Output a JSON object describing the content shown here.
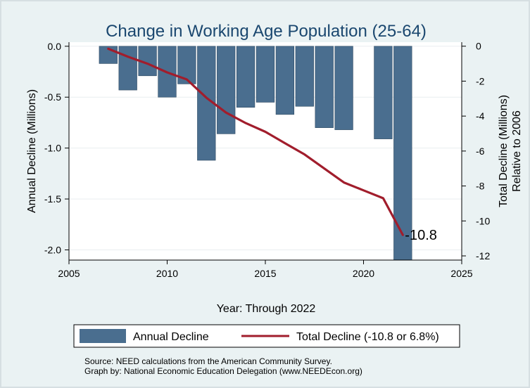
{
  "chart_data": {
    "type": "bar+line",
    "title": "Change in Working Age Population (25-64)",
    "xlabel": "Year: Through 2022",
    "ylabel_left": "Annual Decline (Millions)",
    "ylabel_right": [
      "Total Decline (Millions)",
      "Relative to 2006"
    ],
    "xlim": [
      2005,
      2025
    ],
    "ylim_left": [
      -2.1,
      0.04
    ],
    "ylim_right": [
      -12.24,
      0.23
    ],
    "x_ticks": [
      "2005",
      "2010",
      "2015",
      "2020",
      "2025"
    ],
    "y_left_ticks": [
      "0.0",
      "-0.5",
      "-1.0",
      "-1.5",
      "-2.0"
    ],
    "y_right_ticks": [
      "0",
      "-2",
      "-4",
      "-6",
      "-8",
      "-10",
      "-12"
    ],
    "grid": "horizontal",
    "legend_position": "bottom",
    "series": [
      {
        "name": "Annual Decline",
        "type": "bar",
        "color": "#4a6e8f",
        "x": [
          2007,
          2008,
          2009,
          2010,
          2011,
          2012,
          2013,
          2014,
          2015,
          2016,
          2017,
          2018,
          2019,
          2021,
          2022
        ],
        "values": [
          -0.17,
          -0.43,
          -0.29,
          -0.5,
          -0.37,
          -1.12,
          -0.86,
          -0.6,
          -0.55,
          -0.67,
          -0.59,
          -0.8,
          -0.82,
          -0.91,
          -2.1
        ]
      },
      {
        "name": "Total Decline (-10.8 or 6.8%)",
        "type": "line",
        "color": "#a11d2c",
        "x": [
          2007,
          2008,
          2009,
          2010,
          2011,
          2012,
          2013,
          2014,
          2015,
          2016,
          2017,
          2018,
          2019,
          2020,
          2021,
          2022
        ],
        "values": [
          -0.15,
          -0.6,
          -1.0,
          -1.5,
          -1.9,
          -2.95,
          -3.8,
          -4.4,
          -4.9,
          -5.55,
          -6.2,
          -7.0,
          -7.8,
          -8.25,
          -8.7,
          -10.8
        ]
      }
    ],
    "end_label": "-10.8",
    "legend": [
      {
        "label": "Annual Decline"
      },
      {
        "label": "Total Decline (-10.8 or 6.8%)"
      }
    ]
  },
  "source_lines": [
    "Source: NEED calculations from the American Community Survey.",
    "Graph by: National Economic Education Delegation (www.NEEDEcon.org)"
  ]
}
